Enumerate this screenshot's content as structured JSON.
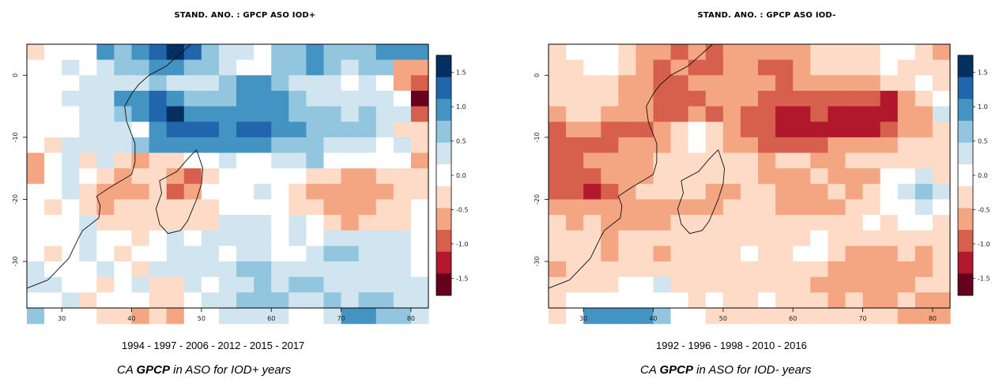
{
  "chart_data": [
    {
      "type": "heatmap",
      "title": "STAND. ANO. :  GPCP ASO IOD+",
      "years": "1994 - 1997 - 2006 - 2012 - 2015 - 2017",
      "caption": {
        "pre": "CA ",
        "bold": "GPCP",
        "post": " in ASO for IOD+ years"
      },
      "x_ticks": [
        "30",
        "40",
        "50",
        "60",
        "70",
        "80"
      ],
      "y_ticks": [
        "0",
        "-10",
        "-20",
        "-30"
      ],
      "xlim": [
        25,
        82.5
      ],
      "ylim": [
        -37.5,
        5
      ],
      "colorbar_ticks": [
        "1.5",
        "1.0",
        "0.5",
        "0.0",
        "-0.5",
        "-1.0",
        "-1.5"
      ],
      "colorbar_range": [
        -1.75,
        1.75
      ],
      "grid": {
        "lon_start": 25,
        "lat_start": 5,
        "cell_deg": 2.5,
        "rows": [
          [
            -0.2,
            0.0,
            0.0,
            0.0,
            0.8,
            0.7,
            1.1,
            1.4,
            1.5,
            1.2,
            0.6,
            0.4,
            0.3,
            0.1,
            0.6,
            0.7,
            0.8,
            0.6,
            0.5,
            0.7,
            0.9,
            1.0,
            1.1
          ],
          [
            0.1,
            0.1,
            0.2,
            0.1,
            0.3,
            0.5,
            0.7,
            0.9,
            1.1,
            0.7,
            0.5,
            0.3,
            0.1,
            0.0,
            0.6,
            0.7,
            0.8,
            0.6,
            0.4,
            0.5,
            0.6,
            -0.5,
            -0.6
          ],
          [
            0.1,
            0.1,
            0.1,
            0.2,
            0.3,
            0.4,
            0.4,
            0.5,
            0.3,
            0.3,
            0.3,
            0.5,
            0.8,
            0.9,
            0.6,
            0.4,
            0.3,
            0.2,
            0.1,
            0.2,
            0.1,
            -0.7,
            -1.0
          ],
          [
            0.0,
            0.1,
            0.2,
            0.3,
            0.4,
            0.8,
            0.9,
            1.2,
            1.0,
            0.5,
            0.6,
            0.5,
            0.9,
            1.0,
            0.8,
            0.6,
            0.4,
            0.2,
            0.2,
            0.3,
            0.2,
            0.0,
            -1.5
          ],
          [
            0.0,
            0.1,
            0.1,
            0.2,
            0.4,
            0.6,
            1.0,
            1.3,
            1.5,
            1.1,
            1.0,
            0.9,
            1.0,
            1.0,
            0.8,
            0.7,
            0.5,
            0.5,
            0.4,
            0.5,
            0.3,
            0.2,
            -0.9
          ],
          [
            0.1,
            0.1,
            0.1,
            0.2,
            0.2,
            0.4,
            0.1,
            0.8,
            1.2,
            1.2,
            1.4,
            1.0,
            1.2,
            1.3,
            1.0,
            0.9,
            0.7,
            0.5,
            0.7,
            0.5,
            0.2,
            -0.2,
            -0.4
          ],
          [
            0.0,
            -0.2,
            0.2,
            0.3,
            0.2,
            0.2,
            0.6,
            0.8,
            0.9,
            0.8,
            0.8,
            0.8,
            0.9,
            0.8,
            0.7,
            0.6,
            0.5,
            0.4,
            0.3,
            0.3,
            0.1,
            0.2,
            -0.3
          ],
          [
            -0.5,
            0.1,
            0.3,
            -0.2,
            0.2,
            -0.2,
            -0.6,
            -0.4,
            -0.3,
            0.0,
            0.1,
            0.2,
            0.1,
            0.0,
            0.2,
            0.3,
            0.5,
            0.0,
            0.1,
            0.1,
            0.0,
            -0.1,
            -0.5
          ],
          [
            -0.5,
            0.1,
            0.2,
            0.0,
            -0.3,
            -0.5,
            -0.4,
            -0.2,
            -0.7,
            -0.8,
            -0.2,
            0.0,
            0.1,
            0.0,
            0.1,
            0.0,
            -0.3,
            -0.4,
            -0.5,
            -0.5,
            -0.4,
            -0.4,
            -0.4
          ],
          [
            0.0,
            -0.1,
            0.2,
            -0.3,
            -0.5,
            -0.6,
            -0.5,
            -0.4,
            -0.8,
            -0.7,
            -0.1,
            0.0,
            0.1,
            0.2,
            0.0,
            -0.3,
            -0.5,
            -0.6,
            -0.7,
            -0.6,
            -0.5,
            -0.3,
            -0.2
          ],
          [
            0.1,
            -0.3,
            0.0,
            -0.3,
            -0.5,
            -0.4,
            -0.3,
            -0.2,
            -0.4,
            -0.3,
            -0.2,
            -0.1,
            0.0,
            0.0,
            0.1,
            -0.2,
            -0.3,
            -0.6,
            -0.6,
            -0.6,
            -0.4,
            -0.2,
            0.0
          ],
          [
            0.1,
            0.0,
            0.1,
            0.2,
            -0.4,
            -0.3,
            -0.2,
            -0.3,
            -0.3,
            -0.2,
            -0.4,
            0.2,
            0.3,
            0.3,
            0.1,
            0.2,
            0.1,
            -0.4,
            -0.5,
            -0.4,
            -0.3,
            -0.2,
            -0.1
          ],
          [
            -0.1,
            0.1,
            0.0,
            0.4,
            0.1,
            0.0,
            -0.2,
            0.0,
            0.2,
            0.1,
            0.3,
            0.2,
            0.3,
            0.2,
            0.0,
            0.2,
            0.1,
            0.2,
            0.3,
            0.2,
            0.3,
            0.2,
            0.1
          ],
          [
            0.1,
            -0.2,
            0.0,
            0.2,
            0.0,
            -0.3,
            0.0,
            -0.1,
            0.2,
            0.3,
            0.2,
            0.1,
            0.4,
            0.2,
            0.0,
            0.1,
            0.2,
            0.5,
            0.5,
            0.4,
            0.3,
            0.2,
            0.1
          ],
          [
            0.3,
            0.1,
            -0.1,
            0.1,
            0.2,
            0.1,
            -0.2,
            0.2,
            0.3,
            0.4,
            0.2,
            0.3,
            0.5,
            0.6,
            0.4,
            0.3,
            0.2,
            0.4,
            0.3,
            0.2,
            0.3,
            0.2,
            0.0
          ],
          [
            0.4,
            0.2,
            0.0,
            0.0,
            -0.2,
            -0.1,
            0.2,
            -0.4,
            -0.3,
            0.2,
            0.1,
            0.2,
            0.3,
            0.5,
            0.4,
            0.6,
            0.5,
            0.3,
            0.2,
            0.3,
            0.4,
            0.3,
            0.2
          ],
          [
            0.0,
            0.1,
            0.2,
            -0.2,
            0.0,
            0.1,
            -0.1,
            -0.3,
            -0.4,
            0.1,
            0.2,
            0.3,
            0.5,
            0.6,
            0.7,
            0.4,
            0.3,
            0.5,
            0.3,
            0.6,
            0.5,
            0.3,
            0.2
          ],
          [
            0.5,
            0.1,
            0.0,
            0.0,
            -0.4,
            -0.3,
            -0.5,
            -0.4,
            -0.6,
            0.0,
            0.1,
            0.2,
            0.4,
            0.3,
            0.2,
            0.1,
            0.1,
            0.2,
            0.8,
            0.9,
            0.7,
            0.5,
            0.3
          ]
        ]
      }
    },
    {
      "type": "heatmap",
      "title": "STAND. ANO. :  GPCP ASO IOD-",
      "years": "1992 - 1996 - 1998 - 2010 - 2016",
      "caption": {
        "pre": "CA ",
        "bold": "GPCP",
        "post": " in ASO for IOD- years"
      },
      "x_ticks": [
        "30",
        "40",
        "50",
        "60",
        "70",
        "80"
      ],
      "y_ticks": [
        "0",
        "-10",
        "-20",
        "-30"
      ],
      "xlim": [
        25,
        82.5
      ],
      "ylim": [
        -37.5,
        5
      ],
      "colorbar_ticks": [
        "1.5",
        "1.0",
        "0.5",
        "0.0",
        "-0.5",
        "-1.0",
        "-1.5"
      ],
      "colorbar_range": [
        -1.75,
        1.75
      ],
      "grid": {
        "lon_start": 25,
        "lat_start": 5,
        "cell_deg": 2.5,
        "rows": [
          [
            -0.2,
            -0.1,
            0.0,
            0.0,
            -0.3,
            -0.5,
            -0.6,
            -0.8,
            -0.6,
            -0.8,
            -0.5,
            -0.6,
            -0.7,
            -0.5,
            -0.6,
            -0.4,
            -0.3,
            -0.2,
            -0.3,
            -0.1,
            0.1,
            -0.3,
            -0.5
          ],
          [
            -0.3,
            -0.2,
            -0.1,
            -0.1,
            -0.4,
            -0.6,
            -0.8,
            -0.7,
            -0.9,
            -0.9,
            -0.6,
            -0.7,
            -0.8,
            -0.8,
            -0.6,
            -0.4,
            -0.2,
            -0.3,
            -0.2,
            0.1,
            -0.3,
            -0.2,
            -0.4
          ],
          [
            -0.3,
            -0.3,
            -0.2,
            -0.2,
            -0.5,
            -0.7,
            -1.0,
            -0.8,
            -0.7,
            -0.6,
            -0.7,
            -0.5,
            -0.7,
            -0.8,
            -0.7,
            -0.6,
            -0.5,
            -0.6,
            -0.5,
            -0.4,
            -0.2,
            -0.1,
            -0.3
          ],
          [
            -0.4,
            -0.3,
            -0.3,
            -0.4,
            -0.5,
            -0.7,
            -0.9,
            -0.8,
            -0.9,
            -0.7,
            -0.7,
            -0.6,
            -1.0,
            -1.1,
            -1.0,
            -1.1,
            -1.0,
            -1.0,
            -1.1,
            -1.3,
            -0.5,
            -0.4,
            -0.1
          ],
          [
            -0.5,
            -0.4,
            -0.4,
            -0.6,
            -0.6,
            -0.7,
            -1.0,
            -0.8,
            -0.7,
            -0.8,
            -0.7,
            -0.8,
            -1.1,
            -1.2,
            -1.2,
            -1.1,
            -1.2,
            -1.3,
            -1.2,
            -1.3,
            -0.7,
            -0.5,
            0.2
          ],
          [
            -0.8,
            -0.6,
            -0.7,
            -0.8,
            -1.0,
            -0.8,
            -0.6,
            -0.4,
            0.1,
            -0.3,
            -0.7,
            -0.8,
            -1.0,
            -1.2,
            -1.3,
            -1.3,
            -1.3,
            -1.2,
            -1.2,
            -0.8,
            -0.6,
            -0.5,
            -0.3
          ],
          [
            -0.8,
            -0.8,
            -0.9,
            -0.8,
            -0.7,
            -0.6,
            -0.5,
            -0.3,
            -0.1,
            -0.2,
            -0.5,
            -0.7,
            -0.8,
            -0.8,
            -0.8,
            -0.9,
            -0.7,
            -0.6,
            -0.5,
            -0.5,
            -0.4,
            -0.3,
            -0.2
          ],
          [
            -0.8,
            -0.9,
            -0.7,
            -0.6,
            -0.5,
            -0.6,
            -0.4,
            -0.3,
            -0.2,
            -0.3,
            -0.2,
            -0.4,
            -0.5,
            -0.4,
            -0.3,
            -0.5,
            -0.6,
            -0.4,
            -0.3,
            -0.3,
            -0.2,
            -0.3,
            -0.4
          ],
          [
            -1.0,
            -0.8,
            -0.9,
            -0.7,
            -0.6,
            -0.5,
            -0.4,
            -0.3,
            -0.2,
            -0.4,
            -0.3,
            -0.2,
            -0.6,
            -0.7,
            -0.5,
            -0.4,
            -0.5,
            -0.5,
            -0.6,
            0.0,
            0.1,
            0.3,
            -0.2
          ],
          [
            -0.9,
            -1.1,
            -1.2,
            -0.8,
            -0.6,
            -0.4,
            -0.3,
            -0.2,
            -0.4,
            -0.6,
            -0.5,
            -0.3,
            -0.4,
            -0.6,
            -0.6,
            -0.5,
            -0.4,
            -0.5,
            -0.3,
            -0.1,
            0.2,
            0.7,
            0.3
          ],
          [
            -0.6,
            -0.6,
            -0.7,
            -0.7,
            -0.6,
            -0.5,
            -0.5,
            -0.6,
            -0.6,
            -0.5,
            -0.4,
            -0.3,
            -0.4,
            -0.5,
            -0.5,
            -0.6,
            -0.5,
            -0.3,
            -0.2,
            -0.1,
            0.1,
            0.3,
            0.0
          ],
          [
            -0.4,
            -0.5,
            -0.4,
            -0.5,
            -0.6,
            -0.5,
            -0.5,
            -0.4,
            -0.4,
            -0.3,
            -0.3,
            -0.3,
            -0.4,
            -0.3,
            -0.3,
            -0.4,
            -0.3,
            -0.2,
            -0.1,
            -0.2,
            0.0,
            -0.1,
            -0.2
          ],
          [
            -0.3,
            -0.4,
            -0.3,
            -0.5,
            -0.4,
            -0.4,
            -0.3,
            -0.3,
            -0.4,
            -0.2,
            -0.3,
            -0.2,
            -0.3,
            -0.2,
            -0.2,
            -0.1,
            -0.3,
            -0.2,
            -0.4,
            -0.4,
            -0.3,
            -0.2,
            -0.3
          ],
          [
            -0.4,
            -0.3,
            -0.4,
            -0.5,
            -0.3,
            -0.4,
            -0.5,
            -0.3,
            -0.4,
            -0.3,
            -0.2,
            -0.1,
            -0.2,
            -0.3,
            -0.1,
            0.0,
            -0.2,
            -0.5,
            -0.6,
            -0.5,
            -0.4,
            -0.5,
            -0.3
          ],
          [
            -0.5,
            -0.3,
            -0.4,
            -0.3,
            -0.2,
            -0.4,
            -0.3,
            -0.3,
            -0.2,
            -0.3,
            -0.2,
            -0.3,
            -0.2,
            -0.2,
            -0.3,
            -0.4,
            -0.5,
            -0.6,
            -0.7,
            -0.6,
            -0.6,
            -0.5,
            -0.4
          ],
          [
            -0.4,
            -0.4,
            -0.3,
            -0.2,
            -0.1,
            0.1,
            0.2,
            -0.2,
            -0.3,
            -0.2,
            -0.3,
            -0.4,
            -0.2,
            -0.3,
            -0.4,
            -0.5,
            -0.6,
            -0.5,
            -0.7,
            -0.6,
            -0.5,
            -0.4,
            -0.3
          ],
          [
            -0.2,
            -0.1,
            0.0,
            -0.1,
            0.0,
            0.1,
            0.0,
            -0.1,
            -0.2,
            -0.1,
            -0.2,
            -0.3,
            -0.1,
            -0.2,
            -0.4,
            -0.3,
            -0.5,
            -0.4,
            -0.6,
            -0.5,
            -0.4,
            -0.5,
            -0.6
          ],
          [
            -0.3,
            0.1,
            1.0,
            1.1,
            1.0,
            0.9,
            0.7,
            0.0,
            -0.1,
            -0.2,
            -0.3,
            -0.2,
            -0.2,
            -0.3,
            -0.4,
            -0.3,
            -0.2,
            -0.2,
            -0.3,
            -0.4,
            -0.6,
            -0.5,
            -0.7
          ]
        ]
      }
    }
  ],
  "colors": {
    "scale": [
      "#67001f",
      "#b2182b",
      "#d6604d",
      "#f4a582",
      "#fddbc7",
      "#ffffff",
      "#d1e5f0",
      "#92c5de",
      "#4393c3",
      "#2166ac",
      "#053061"
    ]
  }
}
